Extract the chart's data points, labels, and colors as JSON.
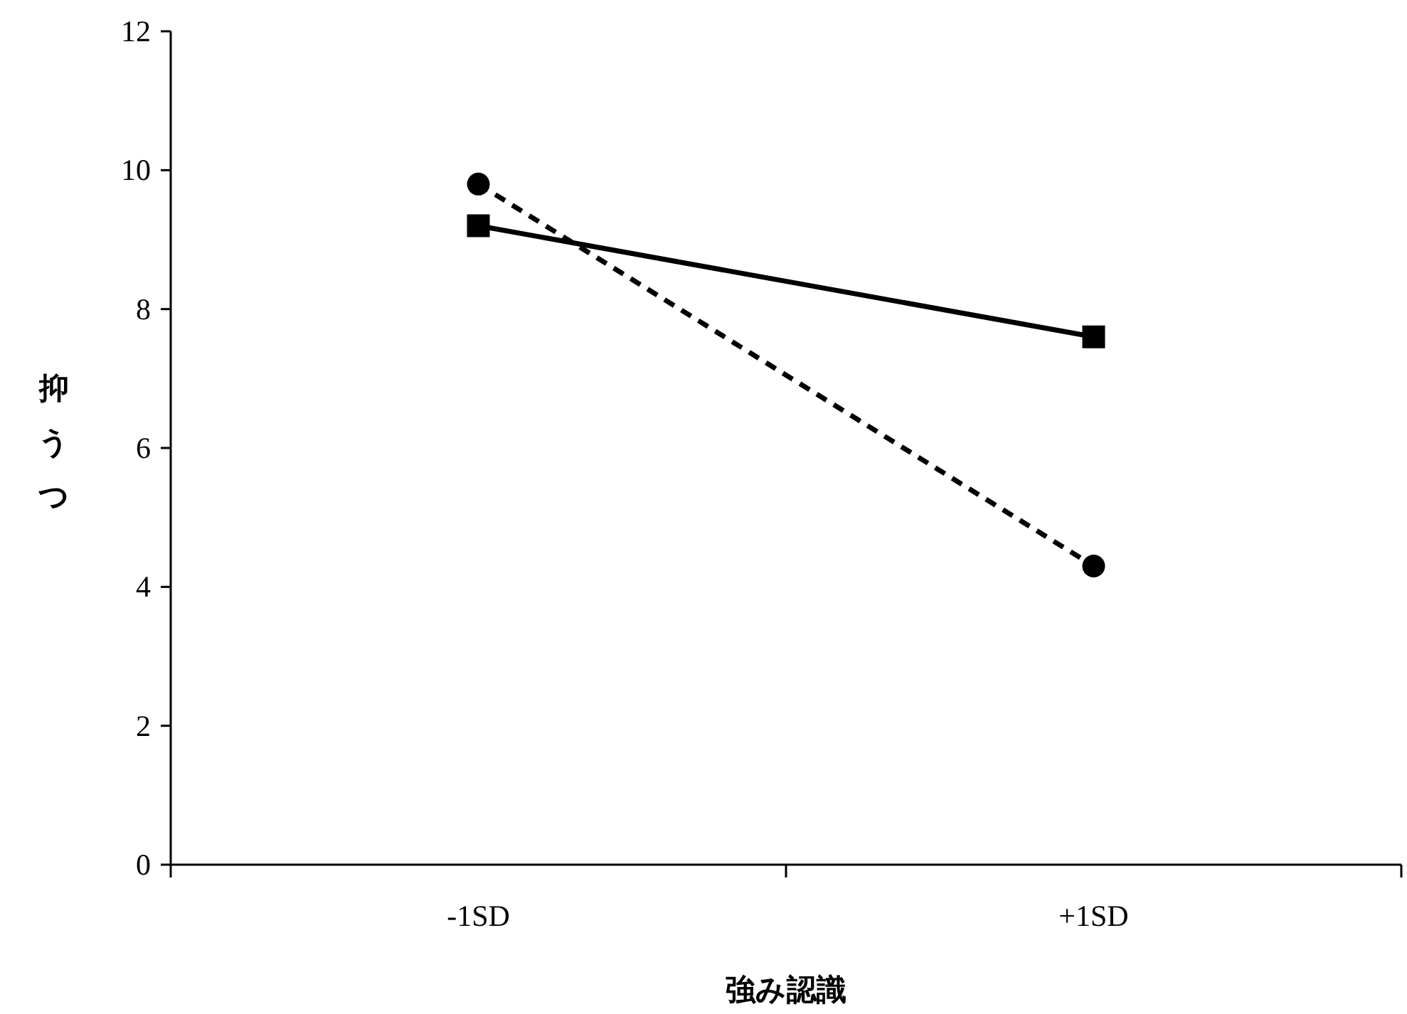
{
  "chart_data": {
    "type": "line",
    "xlabel": "強み認識",
    "ylabel": "抑うつ",
    "categories": [
      "-1SD",
      "+1SD"
    ],
    "series": [
      {
        "color": "#000000",
        "values": [
          9.2,
          7.6
        ],
        "marker": "square",
        "line_style": "solid"
      },
      {
        "color": "#000000",
        "values": [
          9.8,
          4.3
        ],
        "marker": "circle",
        "line_style": "dashed"
      }
    ],
    "ylim": [
      0,
      12
    ],
    "yticks": [
      0,
      2,
      4,
      6,
      8,
      10,
      12
    ],
    "grid": false
  }
}
